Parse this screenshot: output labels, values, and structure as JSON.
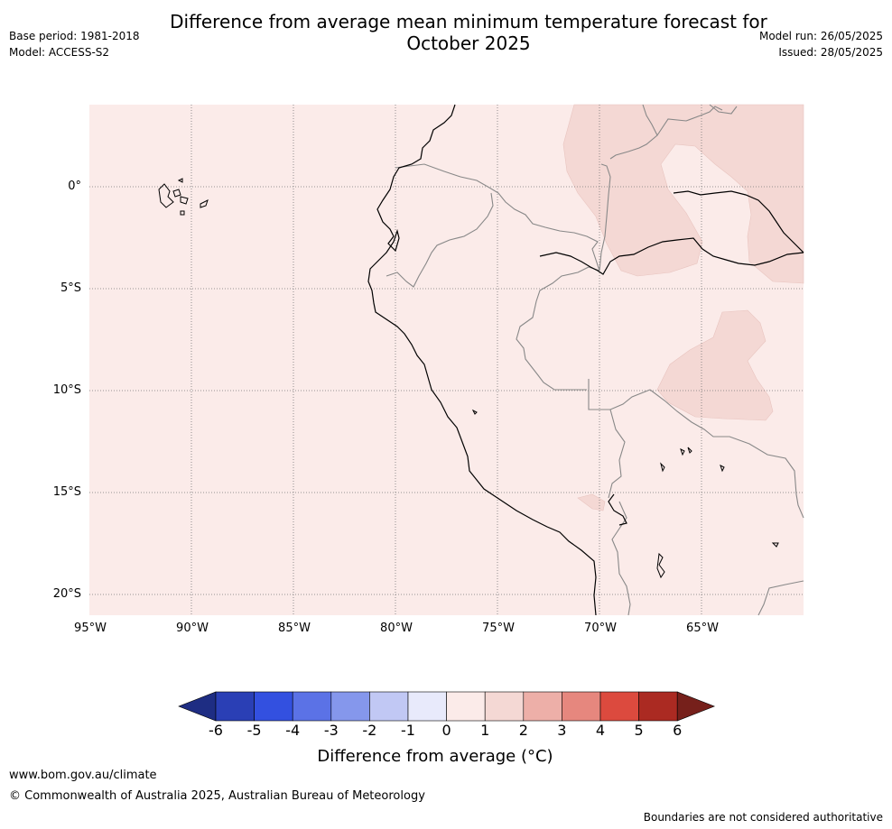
{
  "header": {
    "title_line1": "Difference from average mean minimum temperature forecast for",
    "title_line2": "October 2025",
    "base_period": "Base period: 1981-2018",
    "model": "Model: ACCESS-S2",
    "model_run": "Model run: 26/05/2025",
    "issued": "Issued: 28/05/2025"
  },
  "map": {
    "lat_labels": [
      "0°",
      "5°S",
      "10°S",
      "15°S",
      "20°S"
    ],
    "lon_labels": [
      "95°W",
      "90°W",
      "85°W",
      "80°W",
      "75°W",
      "70°W",
      "65°W"
    ],
    "background_color": "#fbebe9",
    "anomaly_patch_color": "#f4d8d4"
  },
  "colorbar": {
    "ticks": [
      "-6",
      "-5",
      "-4",
      "-3",
      "-2",
      "-1",
      "0",
      "1",
      "2",
      "3",
      "4",
      "5",
      "6"
    ],
    "colors": [
      "#1e2d83",
      "#2a3fb5",
      "#3350e0",
      "#5b72e6",
      "#8597ec",
      "#c1c8f4",
      "#e8eafb",
      "#fbebe9",
      "#f4d8d4",
      "#edafa8",
      "#e6877e",
      "#dc4a3e",
      "#ab2a22",
      "#76201b"
    ],
    "label": "Difference from average (°C)"
  },
  "footer": {
    "url": "www.bom.gov.au/climate",
    "copyright": "© Commonwealth of Australia 2025, Australian Bureau of Meteorology",
    "disclaimer": "Boundaries are not considered authoritative"
  }
}
